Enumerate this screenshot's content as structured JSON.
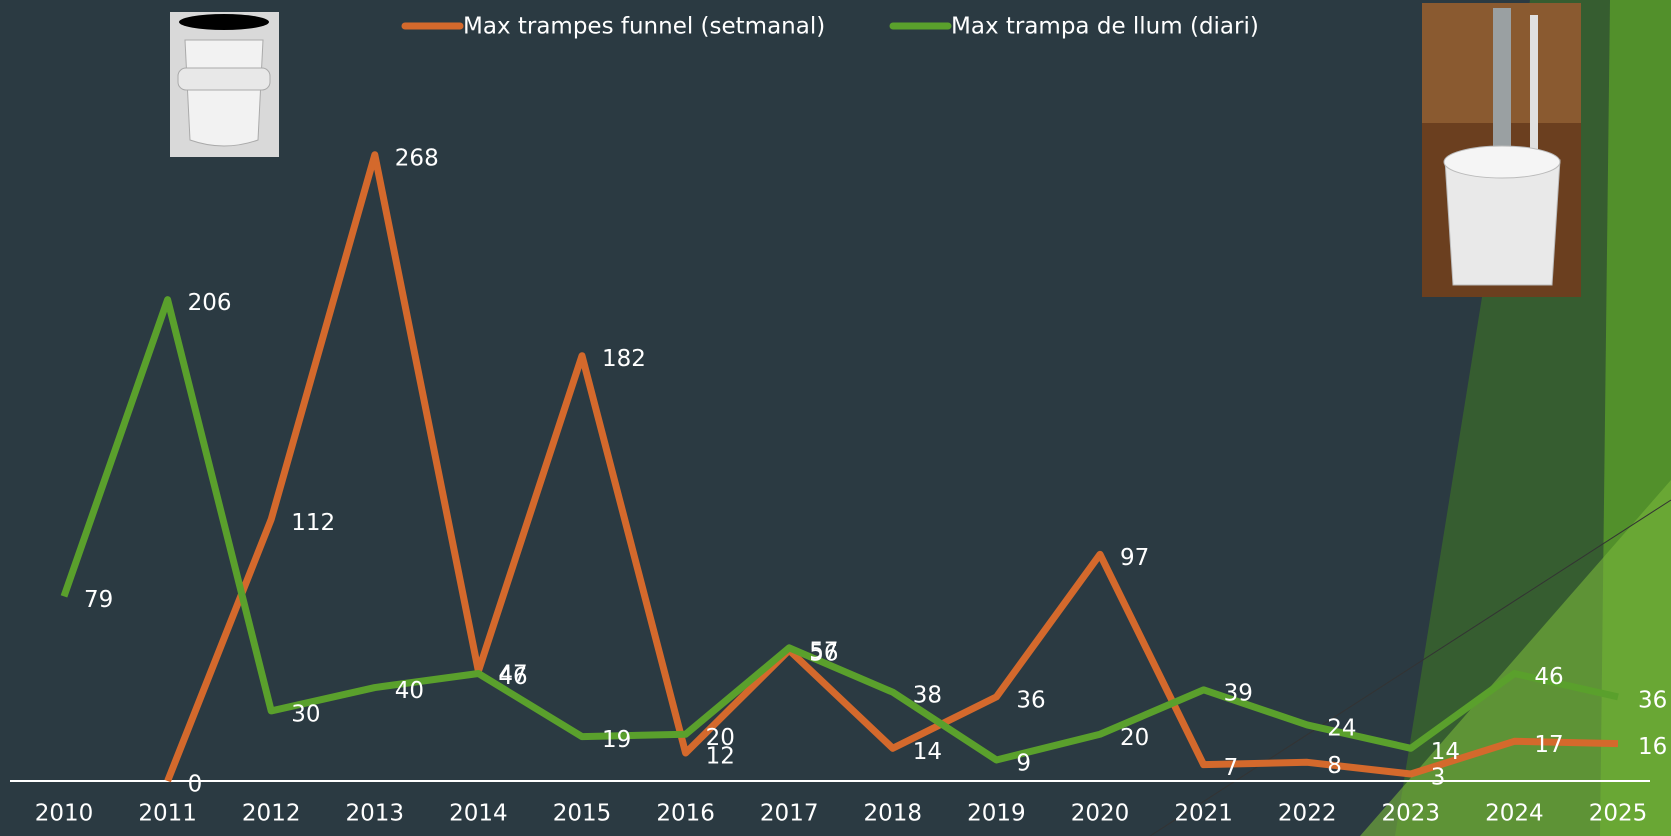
{
  "chart_data": {
    "type": "line",
    "categories": [
      "2010",
      "2011",
      "2012",
      "2013",
      "2014",
      "2015",
      "2016",
      "2017",
      "2018",
      "2019",
      "2020",
      "2021",
      "2022",
      "2023",
      "2024",
      "2025"
    ],
    "series": [
      {
        "name": "Max trampes funnel (setmanal)",
        "color": "#d4692c",
        "values": [
          null,
          0,
          112,
          268,
          47,
          182,
          12,
          56,
          14,
          36,
          97,
          7,
          8,
          3,
          17,
          16
        ]
      },
      {
        "name": "Max trampa de llum (diari)",
        "color": "#5aa02c",
        "values": [
          79,
          206,
          30,
          40,
          46,
          19,
          20,
          57,
          38,
          9,
          20,
          39,
          24,
          14,
          46,
          36
        ]
      }
    ],
    "ylim": [
      0,
      300
    ],
    "legend": "top"
  }
}
